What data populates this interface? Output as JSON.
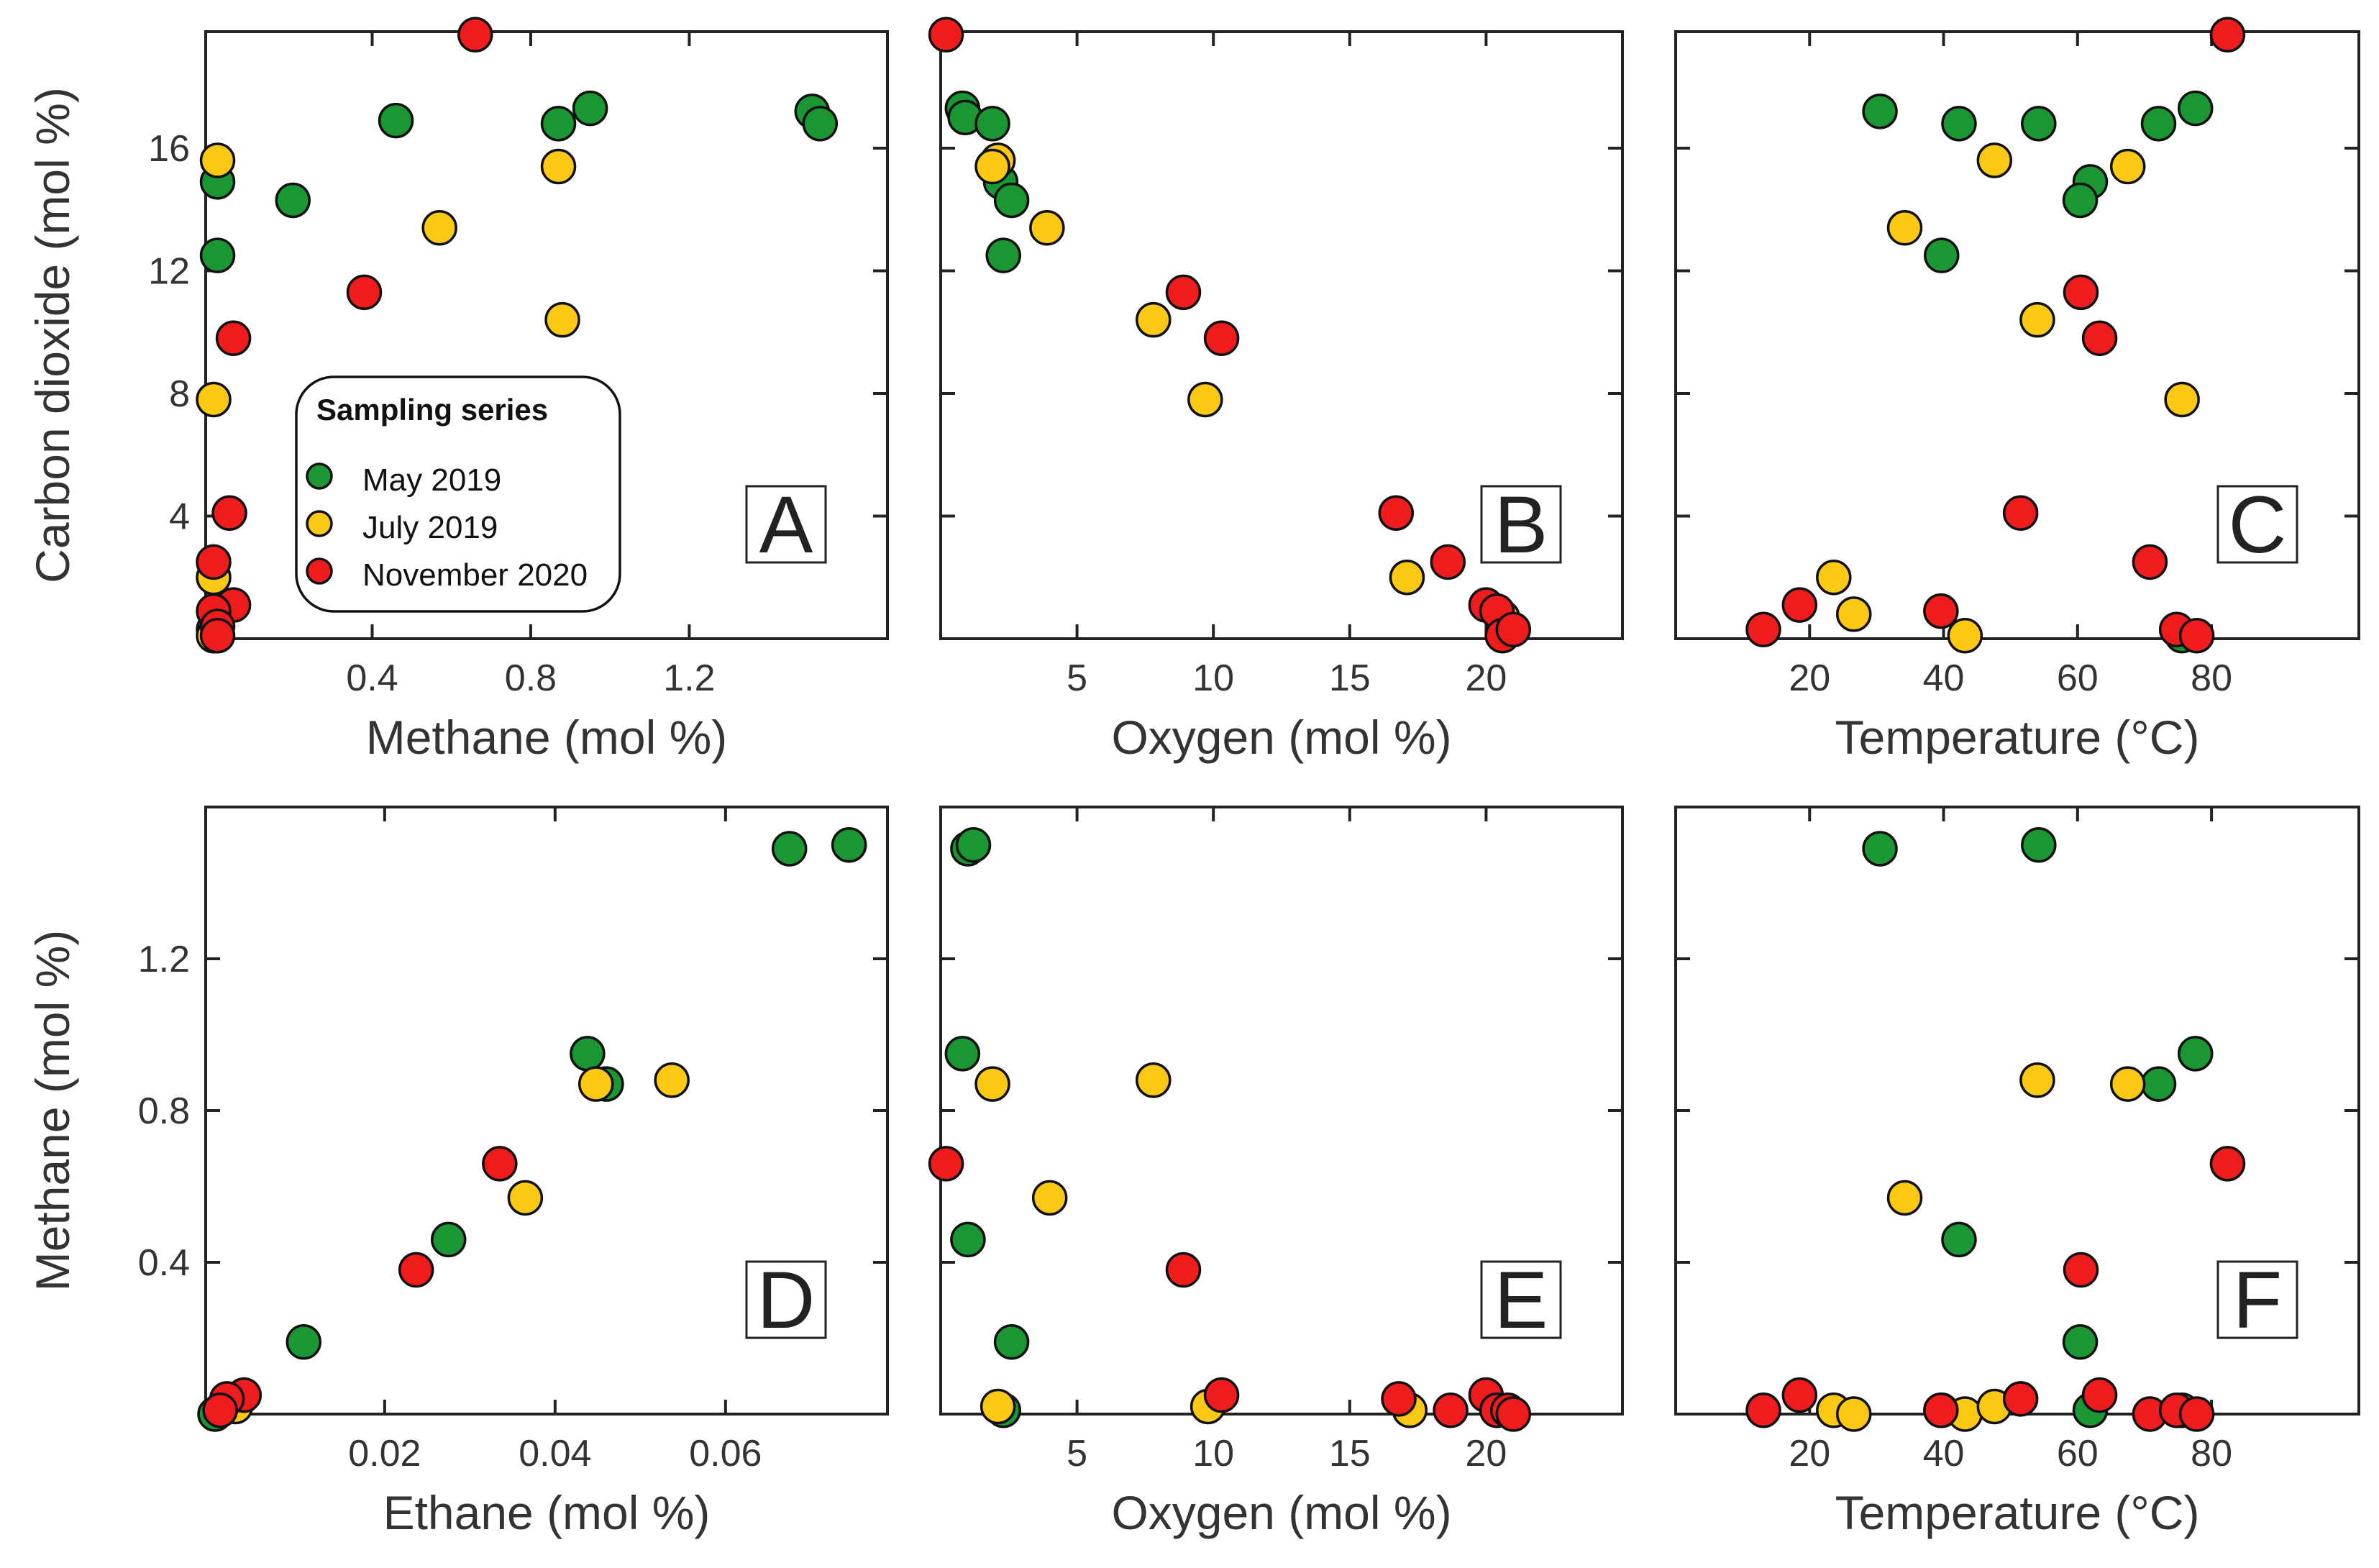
{
  "legend": {
    "title": "Sampling series",
    "entries": [
      {
        "label": "May 2019",
        "color": "#1a9632"
      },
      {
        "label": "July 2019",
        "color": "#fbc913"
      },
      {
        "label": "November 2020",
        "color": "#ee1c1c"
      }
    ]
  },
  "chart_data": [
    {
      "panel": "A",
      "type": "scatter",
      "xlabel": "Methane (mol %)",
      "ylabel": "Carbon dioxide (mol %)",
      "xlim": [
        -0.02,
        1.7
      ],
      "ylim": [
        0,
        19.8
      ],
      "xticks": [
        0.4,
        0.8,
        1.2
      ],
      "xtick_labels": [
        "0.4",
        "0.8",
        "1.2"
      ],
      "yticks": [
        4,
        8,
        12,
        16
      ],
      "ytick_labels": [
        "4",
        "8",
        "12",
        "16"
      ],
      "series": [
        {
          "name": "May 2019",
          "points": [
            [
              0.01,
              14.9
            ],
            [
              0.01,
              12.5
            ],
            [
              0.2,
              14.3
            ],
            [
              0.46,
              16.9
            ],
            [
              0.87,
              16.8
            ],
            [
              0.95,
              17.3
            ],
            [
              1.51,
              17.2
            ],
            [
              1.53,
              16.8
            ],
            [
              0.0,
              0.3
            ]
          ]
        },
        {
          "name": "July 2019",
          "points": [
            [
              0.01,
              15.6
            ],
            [
              0.57,
              13.4
            ],
            [
              0.87,
              15.4
            ],
            [
              0.88,
              10.4
            ],
            [
              0.0,
              7.8
            ],
            [
              0.0,
              2.0
            ],
            [
              0.0,
              0.1
            ]
          ]
        },
        {
          "name": "November 2020",
          "points": [
            [
              0.66,
              19.7
            ],
            [
              0.38,
              11.3
            ],
            [
              0.05,
              9.8
            ],
            [
              0.04,
              4.1
            ],
            [
              0.0,
              2.5
            ],
            [
              0.05,
              1.1
            ],
            [
              0.0,
              0.9
            ],
            [
              0.01,
              0.4
            ],
            [
              0.01,
              0.1
            ]
          ]
        }
      ]
    },
    {
      "panel": "B",
      "type": "scatter",
      "xlabel": "Oxygen (mol %)",
      "ylabel": "",
      "xlim": [
        0,
        25
      ],
      "ylim": [
        0,
        19.8
      ],
      "xticks": [
        5,
        10,
        15,
        20
      ],
      "xtick_labels": [
        "5",
        "10",
        "15",
        "20"
      ],
      "yticks": [
        4,
        8,
        12,
        16
      ],
      "ytick_labels": [],
      "series": [
        {
          "name": "May 2019",
          "points": [
            [
              0.8,
              17.3
            ],
            [
              0.9,
              17.0
            ],
            [
              1.9,
              16.8
            ],
            [
              2.2,
              14.9
            ],
            [
              2.6,
              14.3
            ],
            [
              2.3,
              12.5
            ]
          ]
        },
        {
          "name": "July 2019",
          "points": [
            [
              2.1,
              15.6
            ],
            [
              1.9,
              15.4
            ],
            [
              3.9,
              13.4
            ],
            [
              7.8,
              10.4
            ],
            [
              9.7,
              7.8
            ],
            [
              17.1,
              2.0
            ],
            [
              20.6,
              0.7
            ]
          ]
        },
        {
          "name": "November 2020",
          "points": [
            [
              0.2,
              19.7
            ],
            [
              8.9,
              11.3
            ],
            [
              10.3,
              9.8
            ],
            [
              16.7,
              4.1
            ],
            [
              18.6,
              2.5
            ],
            [
              20.0,
              1.1
            ],
            [
              20.4,
              0.9
            ],
            [
              20.6,
              0.1
            ],
            [
              21.0,
              0.3
            ]
          ]
        }
      ]
    },
    {
      "panel": "C",
      "type": "scatter",
      "xlabel": "Temperature (°C)",
      "ylabel": "",
      "xlim": [
        0,
        102
      ],
      "ylim": [
        0,
        19.8
      ],
      "xticks": [
        20,
        40,
        60,
        80
      ],
      "xtick_labels": [
        "20",
        "40",
        "60",
        "80"
      ],
      "yticks": [
        4,
        8,
        12,
        16
      ],
      "ytick_labels": [],
      "series": [
        {
          "name": "May 2019",
          "points": [
            [
              30.5,
              17.2
            ],
            [
              42.3,
              16.8
            ],
            [
              54.2,
              16.8
            ],
            [
              61.9,
              14.9
            ],
            [
              60.4,
              14.3
            ],
            [
              39.7,
              12.5
            ],
            [
              72.1,
              16.8
            ],
            [
              77.6,
              17.3
            ],
            [
              75.6,
              0.1
            ]
          ]
        },
        {
          "name": "July 2019",
          "points": [
            [
              47.6,
              15.6
            ],
            [
              67.5,
              15.4
            ],
            [
              34.2,
              13.4
            ],
            [
              54.0,
              10.4
            ],
            [
              75.6,
              7.8
            ],
            [
              23.6,
              2.0
            ],
            [
              26.6,
              0.8
            ],
            [
              43.2,
              0.1
            ]
          ]
        },
        {
          "name": "November 2020",
          "points": [
            [
              82.4,
              19.7
            ],
            [
              60.5,
              11.3
            ],
            [
              63.3,
              9.8
            ],
            [
              51.5,
              4.1
            ],
            [
              70.8,
              2.5
            ],
            [
              18.5,
              1.1
            ],
            [
              39.6,
              0.9
            ],
            [
              13.1,
              0.3
            ],
            [
              74.8,
              0.3
            ],
            [
              77.8,
              0.1
            ]
          ]
        }
      ]
    },
    {
      "panel": "D",
      "type": "scatter",
      "xlabel": "Ethane (mol %)",
      "ylabel": "Methane (mol %)",
      "xlim": [
        -0.001,
        0.079
      ],
      "ylim": [
        0,
        1.6
      ],
      "xticks": [
        0.02,
        0.04,
        0.06
      ],
      "xtick_labels": [
        "0.02",
        "0.04",
        "0.06"
      ],
      "yticks": [
        0.4,
        0.8,
        1.2
      ],
      "ytick_labels": [
        "0.4",
        "0.8",
        "1.2"
      ],
      "series": [
        {
          "name": "May 2019",
          "points": [
            [
              0.0675,
              1.49
            ],
            [
              0.0745,
              1.5
            ],
            [
              0.0438,
              0.95
            ],
            [
              0.046,
              0.87
            ],
            [
              0.0275,
              0.46
            ],
            [
              0.0105,
              0.19
            ],
            [
              0.0001,
              0.0
            ]
          ]
        },
        {
          "name": "July 2019",
          "points": [
            [
              0.0537,
              0.88
            ],
            [
              0.0448,
              0.87
            ],
            [
              0.0365,
              0.57
            ],
            [
              0.0025,
              0.02
            ]
          ]
        },
        {
          "name": "November 2020",
          "points": [
            [
              0.0335,
              0.66
            ],
            [
              0.0237,
              0.38
            ],
            [
              0.0035,
              0.05
            ],
            [
              0.0015,
              0.04
            ],
            [
              0.0007,
              0.01
            ]
          ]
        }
      ]
    },
    {
      "panel": "E",
      "type": "scatter",
      "xlabel": "Oxygen (mol %)",
      "ylabel": "",
      "xlim": [
        0,
        25
      ],
      "ylim": [
        0,
        1.6
      ],
      "xticks": [
        5,
        10,
        15,
        20
      ],
      "xtick_labels": [
        "5",
        "10",
        "15",
        "20"
      ],
      "yticks": [
        0.4,
        0.8,
        1.2
      ],
      "ytick_labels": [],
      "series": [
        {
          "name": "May 2019",
          "points": [
            [
              1.0,
              1.49
            ],
            [
              1.2,
              1.5
            ],
            [
              0.8,
              0.95
            ],
            [
              1.0,
              0.46
            ],
            [
              2.6,
              0.19
            ],
            [
              2.3,
              0.01
            ]
          ]
        },
        {
          "name": "July 2019",
          "points": [
            [
              7.8,
              0.88
            ],
            [
              1.9,
              0.87
            ],
            [
              4.0,
              0.57
            ],
            [
              2.1,
              0.02
            ],
            [
              9.8,
              0.02
            ],
            [
              17.2,
              0.01
            ]
          ]
        },
        {
          "name": "November 2020",
          "points": [
            [
              0.2,
              0.66
            ],
            [
              8.9,
              0.38
            ],
            [
              10.3,
              0.05
            ],
            [
              16.8,
              0.04
            ],
            [
              18.7,
              0.01
            ],
            [
              20.0,
              0.05
            ],
            [
              20.4,
              0.01
            ],
            [
              20.8,
              0.01
            ],
            [
              21.0,
              0.0
            ]
          ]
        }
      ]
    },
    {
      "panel": "F",
      "type": "scatter",
      "xlabel": "Temperature (°C)",
      "ylabel": "",
      "xlim": [
        0,
        102
      ],
      "ylim": [
        0,
        1.6
      ],
      "xticks": [
        20,
        40,
        60,
        80
      ],
      "xtick_labels": [
        "20",
        "40",
        "60",
        "80"
      ],
      "yticks": [
        0.4,
        0.8,
        1.2
      ],
      "ytick_labels": [],
      "series": [
        {
          "name": "May 2019",
          "points": [
            [
              30.5,
              1.49
            ],
            [
              54.2,
              1.5
            ],
            [
              77.6,
              0.95
            ],
            [
              72.1,
              0.87
            ],
            [
              42.3,
              0.46
            ],
            [
              60.4,
              0.19
            ],
            [
              61.9,
              0.01
            ],
            [
              39.7,
              0.01
            ]
          ]
        },
        {
          "name": "July 2019",
          "points": [
            [
              54.0,
              0.88
            ],
            [
              67.5,
              0.87
            ],
            [
              34.2,
              0.57
            ],
            [
              23.6,
              0.01
            ],
            [
              26.6,
              0.0
            ],
            [
              43.2,
              0.0
            ],
            [
              47.6,
              0.02
            ],
            [
              75.6,
              0.01
            ]
          ]
        },
        {
          "name": "November 2020",
          "points": [
            [
              82.4,
              0.66
            ],
            [
              60.5,
              0.38
            ],
            [
              13.1,
              0.01
            ],
            [
              18.5,
              0.05
            ],
            [
              39.6,
              0.01
            ],
            [
              51.5,
              0.04
            ],
            [
              63.3,
              0.05
            ],
            [
              70.8,
              0.0
            ],
            [
              74.8,
              0.01
            ],
            [
              77.8,
              0.0
            ]
          ]
        }
      ]
    }
  ]
}
